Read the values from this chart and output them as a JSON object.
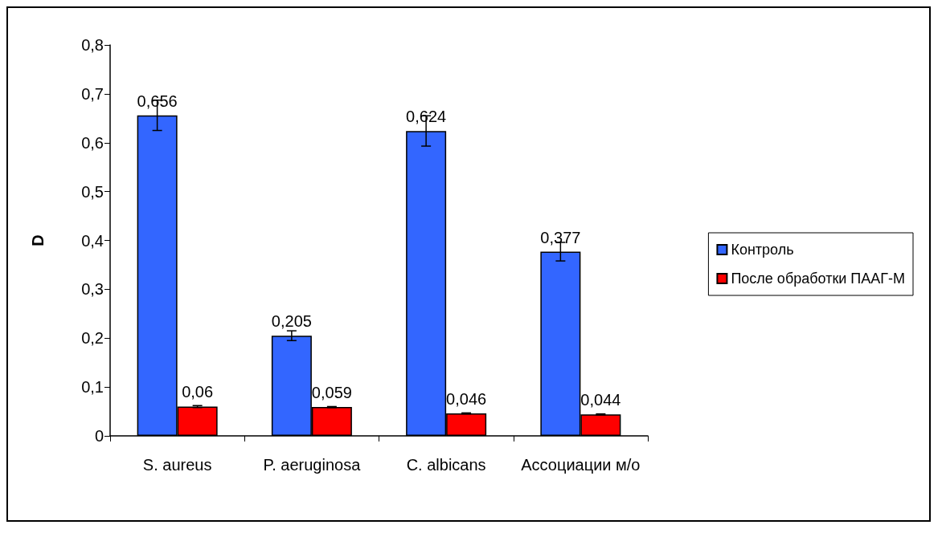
{
  "chart_data": {
    "type": "bar",
    "ylabel": "D",
    "categories": [
      "S. aureus",
      "P. aeruginosa",
      "C. albicans",
      "Ассоциации м/о"
    ],
    "series": [
      {
        "name": "Контроль",
        "color": "#3366ff",
        "values": [
          0.656,
          0.205,
          0.624,
          0.377
        ],
        "errors": [
          0.031,
          0.01,
          0.031,
          0.019
        ],
        "value_labels": [
          "0,656",
          "0,205",
          "0,624",
          "0,377"
        ]
      },
      {
        "name": "После обработки ПААГ-М",
        "color": "#ff0000",
        "values": [
          0.06,
          0.059,
          0.046,
          0.044
        ],
        "errors": [
          0.002,
          0.001,
          0.001,
          0.001
        ],
        "value_labels": [
          "0,06",
          "0,059",
          "0,046",
          "0,044"
        ]
      }
    ],
    "ylim": [
      0,
      0.8
    ],
    "yticks": [
      {
        "value": 0,
        "label": "0"
      },
      {
        "value": 0.1,
        "label": "0,1"
      },
      {
        "value": 0.2,
        "label": "0,2"
      },
      {
        "value": 0.3,
        "label": "0,3"
      },
      {
        "value": 0.4,
        "label": "0,4"
      },
      {
        "value": 0.5,
        "label": "0,5"
      },
      {
        "value": 0.6,
        "label": "0,6"
      },
      {
        "value": 0.7,
        "label": "0,7"
      },
      {
        "value": 0.8,
        "label": "0,8"
      }
    ],
    "grid": false,
    "legend": "right"
  }
}
